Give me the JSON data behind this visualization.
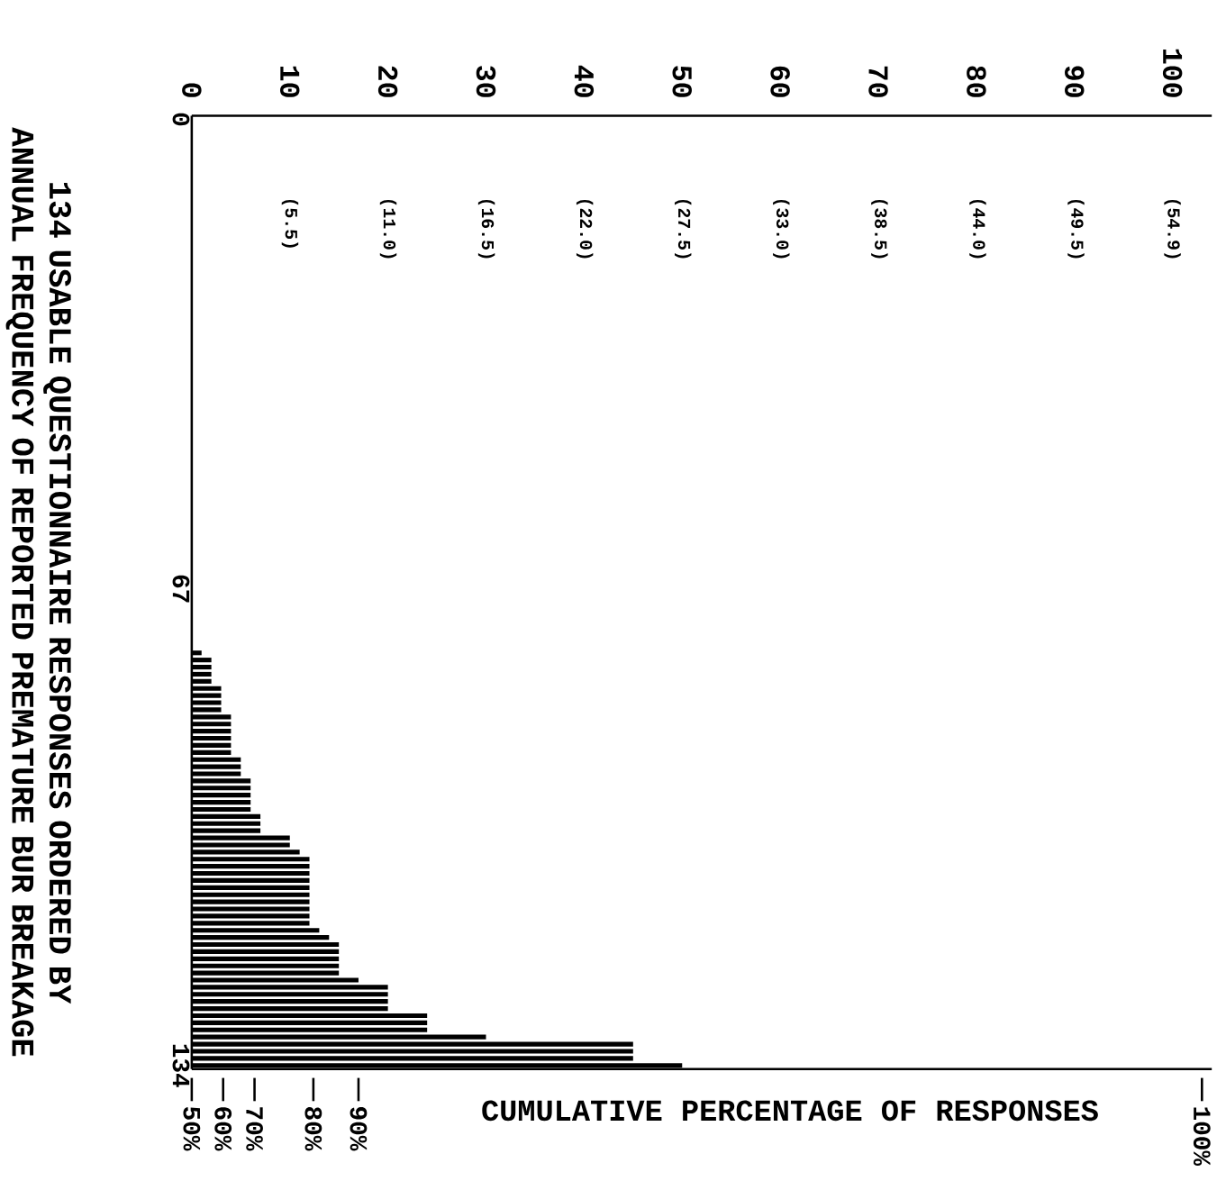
{
  "chart_data": {
    "type": "bar",
    "orientation": "horizontal",
    "ylabel": "134 USABLE QUESTIONNAIRE RESPONSES ORDERED BY ANNUAL FREQUENCY OF REPORTED PREMATURE BUR BREAKAGE",
    "xlabel": "CUMULATIVE PERCENTAGE OF RESPONSES",
    "color": "#000000",
    "categories": [
      "0",
      null,
      null,
      null,
      null,
      null,
      null,
      null,
      null,
      null,
      null,
      null,
      null,
      null,
      null,
      null,
      null,
      null,
      null,
      null,
      null,
      null,
      null,
      null,
      null,
      null,
      null,
      null,
      null,
      null,
      null,
      null,
      null,
      null,
      null,
      null,
      null,
      null,
      null,
      null,
      null,
      null,
      null,
      null,
      null,
      null,
      null,
      null,
      null,
      null,
      null,
      null,
      null,
      null,
      null,
      null,
      null,
      null,
      null,
      null,
      null,
      null,
      null,
      null,
      null,
      null,
      "67",
      null,
      null,
      null,
      null,
      null,
      null,
      null,
      null,
      null,
      null,
      null,
      null,
      null,
      null,
      null,
      null,
      null,
      null,
      null,
      null,
      null,
      null,
      null,
      null,
      null,
      null,
      null,
      null,
      null,
      null,
      null,
      null,
      null,
      null,
      null,
      null,
      null,
      null,
      null,
      null,
      null,
      null,
      null,
      null,
      null,
      null,
      null,
      null,
      null,
      null,
      null,
      null,
      null,
      null,
      null,
      null,
      null,
      null,
      null,
      null,
      null,
      null,
      null,
      null,
      null,
      null,
      "134"
    ],
    "values": [
      0,
      0,
      0,
      0,
      0,
      0,
      0,
      0,
      0,
      0,
      0,
      0,
      0,
      0,
      0,
      0,
      0,
      0,
      0,
      0,
      0,
      0,
      0,
      0,
      0,
      0,
      0,
      0,
      0,
      0,
      0,
      0,
      0,
      0,
      0,
      0,
      0,
      0,
      0,
      0,
      0,
      0,
      0,
      0,
      0,
      0,
      0,
      0,
      0,
      0,
      0,
      0,
      0,
      0,
      0,
      0,
      0,
      0,
      0,
      0,
      0,
      0,
      0,
      0,
      0,
      0,
      0,
      0,
      0,
      0,
      0,
      0,
      0,
      0,
      0,
      1,
      2,
      2,
      2,
      2,
      3,
      3,
      3,
      3,
      4,
      4,
      4,
      4,
      4,
      4,
      5,
      5,
      5,
      6,
      6,
      6,
      6,
      6,
      7,
      7,
      7,
      10,
      10,
      11,
      12,
      12,
      12,
      12,
      12,
      12,
      12,
      12,
      12,
      12,
      13,
      14,
      15,
      15,
      15,
      15,
      15,
      17,
      20,
      20,
      20,
      20,
      24,
      24,
      24,
      30,
      45,
      45,
      45,
      50
    ],
    "xlim": [
      0,
      104
    ],
    "xticks": [
      0,
      10,
      20,
      30,
      40,
      50,
      60,
      70,
      80,
      90,
      100
    ],
    "x2lim": [
      0,
      57.1
    ],
    "x2ticks": [
      {
        "value": 5.5,
        "label": "(5.5)"
      },
      {
        "value": 11.0,
        "label": "(11.0)"
      },
      {
        "value": 16.5,
        "label": "(16.5)"
      },
      {
        "value": 22.0,
        "label": "(22.0)"
      },
      {
        "value": 27.5,
        "label": "(27.5)"
      },
      {
        "value": 33.0,
        "label": "(33.0)"
      },
      {
        "value": 38.5,
        "label": "(38.5)"
      },
      {
        "value": 44.0,
        "label": "(44.0)"
      },
      {
        "value": 49.5,
        "label": "(49.5)"
      },
      {
        "value": 54.9,
        "label": "(54.9)"
      }
    ],
    "annotations": [
      "50%",
      "60%",
      "70%",
      "80%",
      "90%",
      "100%"
    ]
  }
}
